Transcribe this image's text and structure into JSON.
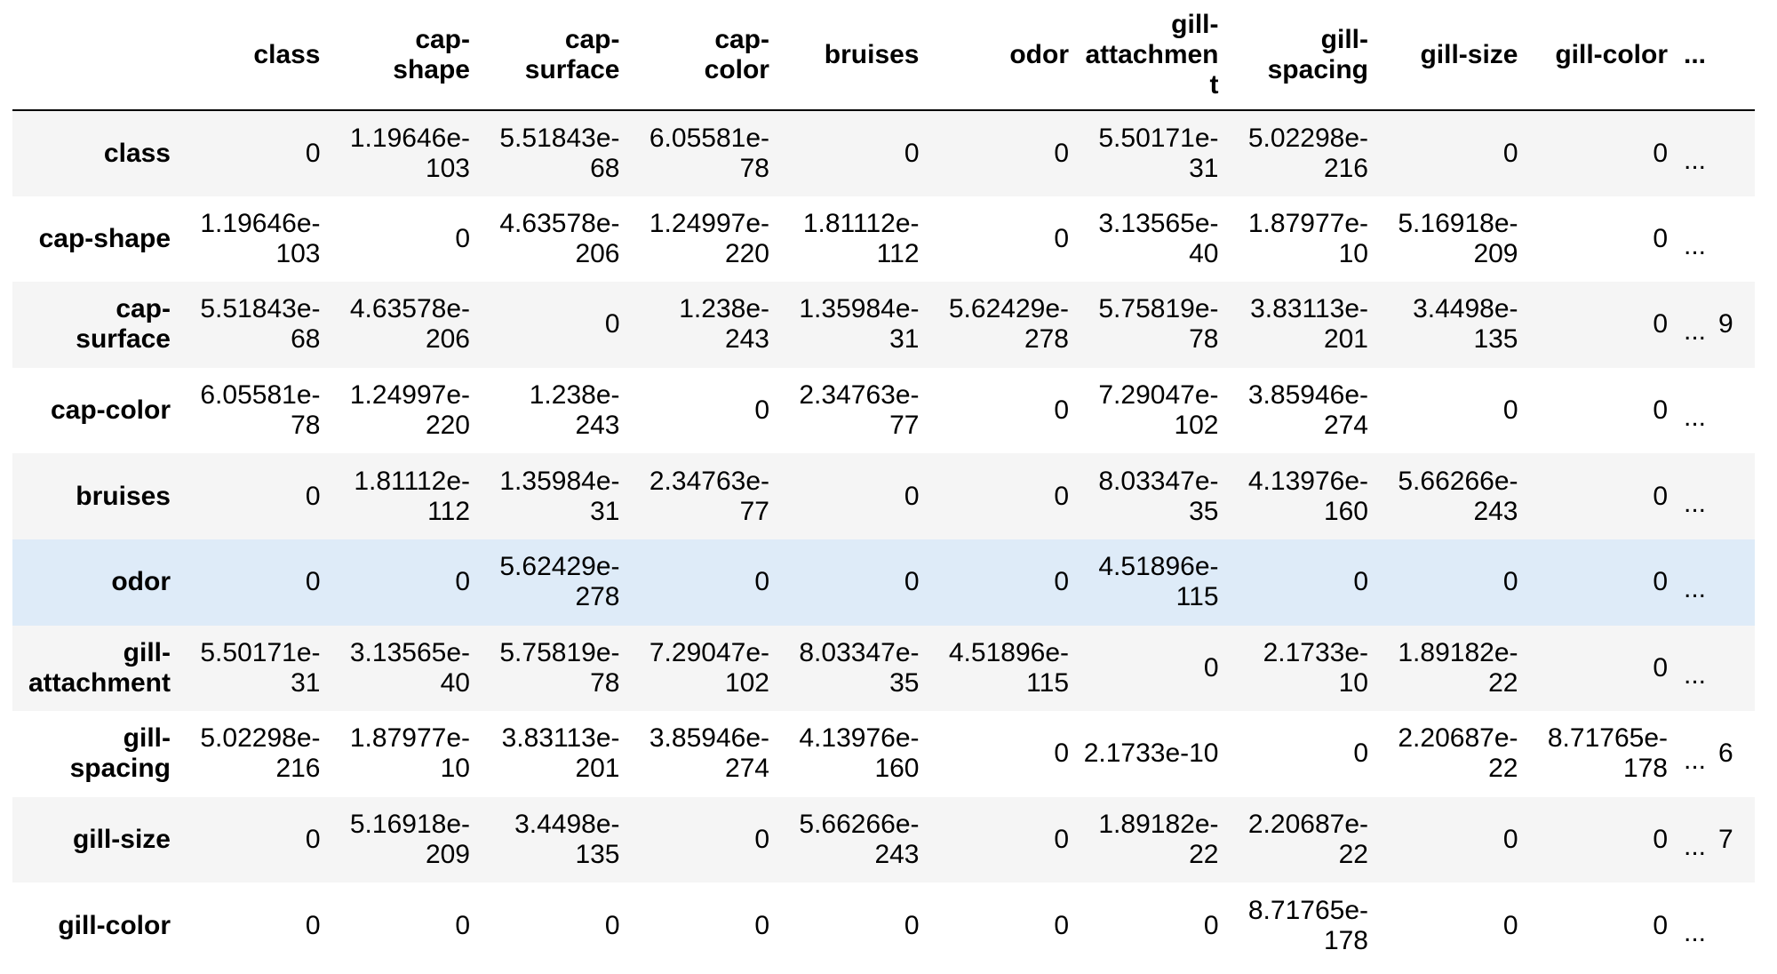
{
  "table": {
    "columns": [
      "class",
      "cap-shape",
      "cap-surface",
      "cap-color",
      "bruises",
      "odor",
      "gill-attachment",
      "gill-spacing",
      "gill-size",
      "gill-color"
    ],
    "column_headers_display": [
      [
        "class"
      ],
      [
        "cap-",
        "shape"
      ],
      [
        "cap-",
        "surface"
      ],
      [
        "cap-",
        "color"
      ],
      [
        "bruises"
      ],
      [
        "odor"
      ],
      [
        "gill-",
        "attachment"
      ],
      [
        "gill-",
        "spacing"
      ],
      [
        "gill-size"
      ],
      [
        "gill-color"
      ]
    ],
    "ellipsis": "...",
    "hovered_row": "odor",
    "colors": {
      "row_odd": "#f5f5f5",
      "row_even": "#ffffff",
      "row_hover": "#deebf8",
      "header_rule": "#000000"
    },
    "rows": [
      {
        "index": "class",
        "index_display": [
          "class"
        ],
        "cells": [
          [
            "0"
          ],
          [
            "1.19646e-",
            "103"
          ],
          [
            "5.51843e-",
            "68"
          ],
          [
            "6.05581e-",
            "78"
          ],
          [
            "0"
          ],
          [
            "0"
          ],
          [
            "5.50171e-",
            "31"
          ],
          [
            "5.02298e-",
            "216"
          ],
          [
            "0"
          ],
          [
            "0"
          ]
        ],
        "tail": ""
      },
      {
        "index": "cap-shape",
        "index_display": [
          "cap-shape"
        ],
        "cells": [
          [
            "1.19646e-",
            "103"
          ],
          [
            "0"
          ],
          [
            "4.63578e-",
            "206"
          ],
          [
            "1.24997e-",
            "220"
          ],
          [
            "1.81112e-",
            "112"
          ],
          [
            "0"
          ],
          [
            "3.13565e-",
            "40"
          ],
          [
            "1.87977e-",
            "10"
          ],
          [
            "5.16918e-",
            "209"
          ],
          [
            "0"
          ]
        ],
        "tail": ""
      },
      {
        "index": "cap-surface",
        "index_display": [
          "cap-",
          "surface"
        ],
        "cells": [
          [
            "5.51843e-",
            "68"
          ],
          [
            "4.63578e-",
            "206"
          ],
          [
            "0"
          ],
          [
            "1.238e-",
            "243"
          ],
          [
            "1.35984e-",
            "31"
          ],
          [
            "5.62429e-",
            "278"
          ],
          [
            "5.75819e-",
            "78"
          ],
          [
            "3.83113e-",
            "201"
          ],
          [
            "3.4498e-",
            "135"
          ],
          [
            "0"
          ]
        ],
        "tail": "9"
      },
      {
        "index": "cap-color",
        "index_display": [
          "cap-color"
        ],
        "cells": [
          [
            "6.05581e-",
            "78"
          ],
          [
            "1.24997e-",
            "220"
          ],
          [
            "1.238e-",
            "243"
          ],
          [
            "0"
          ],
          [
            "2.34763e-",
            "77"
          ],
          [
            "0"
          ],
          [
            "7.29047e-",
            "102"
          ],
          [
            "3.85946e-",
            "274"
          ],
          [
            "0"
          ],
          [
            "0"
          ]
        ],
        "tail": ""
      },
      {
        "index": "bruises",
        "index_display": [
          "bruises"
        ],
        "cells": [
          [
            "0"
          ],
          [
            "1.81112e-",
            "112"
          ],
          [
            "1.35984e-",
            "31"
          ],
          [
            "2.34763e-",
            "77"
          ],
          [
            "0"
          ],
          [
            "0"
          ],
          [
            "8.03347e-",
            "35"
          ],
          [
            "4.13976e-",
            "160"
          ],
          [
            "5.66266e-",
            "243"
          ],
          [
            "0"
          ]
        ],
        "tail": ""
      },
      {
        "index": "odor",
        "index_display": [
          "odor"
        ],
        "cells": [
          [
            "0"
          ],
          [
            "0"
          ],
          [
            "5.62429e-",
            "278"
          ],
          [
            "0"
          ],
          [
            "0"
          ],
          [
            "0"
          ],
          [
            "4.51896e-",
            "115"
          ],
          [
            "0"
          ],
          [
            "0"
          ],
          [
            "0"
          ]
        ],
        "tail": ""
      },
      {
        "index": "gill-attachment",
        "index_display": [
          "gill-",
          "attachment"
        ],
        "cells": [
          [
            "5.50171e-",
            "31"
          ],
          [
            "3.13565e-",
            "40"
          ],
          [
            "5.75819e-",
            "78"
          ],
          [
            "7.29047e-",
            "102"
          ],
          [
            "8.03347e-",
            "35"
          ],
          [
            "4.51896e-",
            "115"
          ],
          [
            "0"
          ],
          [
            "2.1733e-",
            "10"
          ],
          [
            "1.89182e-",
            "22"
          ],
          [
            "0"
          ]
        ],
        "tail": ""
      },
      {
        "index": "gill-spacing",
        "index_display": [
          "gill-",
          "spacing"
        ],
        "cells": [
          [
            "5.02298e-",
            "216"
          ],
          [
            "1.87977e-",
            "10"
          ],
          [
            "3.83113e-",
            "201"
          ],
          [
            "3.85946e-",
            "274"
          ],
          [
            "4.13976e-",
            "160"
          ],
          [
            "0"
          ],
          [
            "2.1733e-10"
          ],
          [
            "0"
          ],
          [
            "2.20687e-",
            "22"
          ],
          [
            "8.71765e-",
            "178"
          ]
        ],
        "tail": "6"
      },
      {
        "index": "gill-size",
        "index_display": [
          "gill-size"
        ],
        "cells": [
          [
            "0"
          ],
          [
            "5.16918e-",
            "209"
          ],
          [
            "3.4498e-",
            "135"
          ],
          [
            "0"
          ],
          [
            "5.66266e-",
            "243"
          ],
          [
            "0"
          ],
          [
            "1.89182e-",
            "22"
          ],
          [
            "2.20687e-",
            "22"
          ],
          [
            "0"
          ],
          [
            "0"
          ]
        ],
        "tail": "7"
      },
      {
        "index": "gill-color",
        "index_display": [
          "gill-color"
        ],
        "cells": [
          [
            "0"
          ],
          [
            "0"
          ],
          [
            "0"
          ],
          [
            "0"
          ],
          [
            "0"
          ],
          [
            "0"
          ],
          [
            "0"
          ],
          [
            "8.71765e-",
            "178"
          ],
          [
            "0"
          ],
          [
            "0"
          ]
        ],
        "tail": ""
      }
    ]
  }
}
